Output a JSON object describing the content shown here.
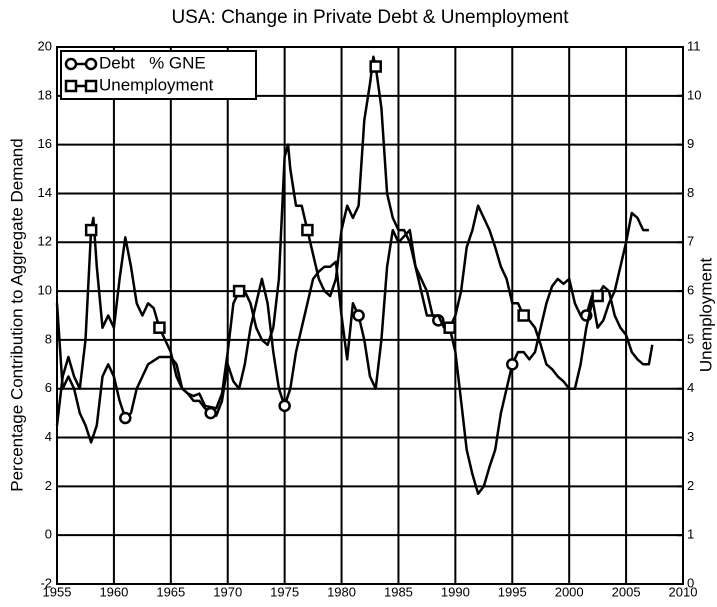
{
  "chart_data": {
    "type": "line",
    "subtitle": "USA: Change in Private Debt & Unemployment",
    "y_label": "Percentage Contribution to Aggregate Demand",
    "y2_label": "Unemployment",
    "xlim": [
      1955,
      2010
    ],
    "xticks": [
      1955,
      1960,
      1965,
      1970,
      1975,
      1980,
      1985,
      1990,
      1995,
      2000,
      2005,
      2010
    ],
    "ylim": [
      -2,
      20
    ],
    "yticks": [
      -2,
      0,
      2,
      4,
      6,
      8,
      10,
      12,
      14,
      16,
      18,
      20
    ],
    "y2lim": [
      0,
      11
    ],
    "y2ticks": [
      0,
      1,
      2,
      3,
      4,
      5,
      6,
      7,
      8,
      9,
      10,
      11
    ],
    "grid": true,
    "legend": "upper left",
    "series": [
      {
        "name": "Debt   % GNE",
        "color": "#000000",
        "marker": "circle",
        "axis": "y",
        "x": [
          1955,
          1955.5,
          1956,
          1956.5,
          1957,
          1957.5,
          1958,
          1958.5,
          1959,
          1959.5,
          1960,
          1960.5,
          1961,
          1961.5,
          1962,
          1962.5,
          1963,
          1964,
          1965,
          1965.5,
          1966,
          1966.5,
          1967,
          1967.5,
          1968,
          1968.5,
          1969,
          1969.5,
          1970,
          1970.5,
          1971,
          1971.5,
          1972,
          1972.5,
          1973,
          1973.5,
          1974,
          1974.5,
          1975,
          1975.5,
          1976,
          1976.5,
          1977,
          1977.5,
          1978,
          1978.5,
          1979,
          1979.5,
          1980,
          1980.5,
          1981,
          1981.5,
          1982,
          1982.5,
          1983,
          1983.5,
          1984,
          1984.5,
          1985,
          1986,
          1986.5,
          1987,
          1987.5,
          1988,
          1988.5,
          1989,
          1989.5,
          1990,
          1990.5,
          1991,
          1991.5,
          1992,
          1992.5,
          1993,
          1993.5,
          1994,
          1994.5,
          1995,
          1995.5,
          1996,
          1996.5,
          1997,
          1997.5,
          1998,
          1998.5,
          1999,
          1999.5,
          2000,
          2000.5,
          2001,
          2001.5,
          2002,
          2002.5,
          2003,
          2003.5,
          2004,
          2004.5,
          2005,
          2005.5,
          2006,
          2006.5,
          2007
        ],
        "values": [
          9.5,
          6.0,
          6.5,
          6.0,
          5.0,
          4.5,
          3.8,
          4.5,
          6.5,
          7.0,
          6.5,
          5.5,
          4.8,
          5.0,
          6.0,
          6.5,
          7.0,
          7.3,
          7.3,
          7.0,
          6.0,
          5.8,
          5.5,
          5.5,
          5.2,
          5.0,
          4.9,
          5.5,
          7.0,
          6.3,
          6.0,
          7.0,
          8.5,
          9.5,
          10.5,
          9.5,
          7.5,
          6.0,
          5.3,
          6.0,
          7.5,
          8.5,
          9.5,
          10.5,
          10.8,
          11.0,
          11.0,
          11.2,
          9.0,
          7.2,
          9.5,
          9.0,
          8.0,
          6.5,
          6.0,
          8.0,
          11.0,
          12.5,
          12.0,
          12.5,
          11.0,
          10.0,
          9.0,
          9.0,
          8.8,
          8.7,
          8.5,
          7.5,
          5.5,
          3.5,
          2.5,
          1.7,
          2.0,
          2.8,
          3.5,
          5.0,
          6.0,
          7.0,
          7.5,
          7.5,
          7.2,
          7.5,
          8.5,
          9.5,
          10.2,
          10.5,
          10.3,
          10.5,
          9.5,
          9.0,
          9.0,
          9.8,
          8.5,
          8.8,
          9.5,
          10.0,
          11.0,
          12.0,
          13.2,
          13.0,
          12.5,
          12.5
        ]
      },
      {
        "name": "Unemployment",
        "color": "#000000",
        "marker": "square",
        "axis": "y2",
        "x": [
          1955,
          1955.5,
          1956,
          1956.5,
          1957,
          1957.5,
          1958,
          1958.2,
          1958.5,
          1959,
          1959.5,
          1960,
          1960.5,
          1961,
          1961.5,
          1962,
          1962.5,
          1963,
          1963.5,
          1964,
          1964.5,
          1965,
          1965.5,
          1966,
          1966.5,
          1967,
          1967.5,
          1968,
          1969,
          1969.5,
          1970,
          1970.5,
          1971,
          1971.5,
          1972,
          1972.5,
          1973,
          1973.5,
          1974,
          1974.5,
          1975,
          1975.3,
          1975.5,
          1976,
          1976.5,
          1977,
          1977.5,
          1978,
          1978.5,
          1979,
          1979.5,
          1980,
          1980.5,
          1981,
          1981.5,
          1982,
          1982.5,
          1982.8,
          1983,
          1983.5,
          1984,
          1984.5,
          1985,
          1985.5,
          1986,
          1986.5,
          1987,
          1987.5,
          1988,
          1988.5,
          1989,
          1989.5,
          1990,
          1990.5,
          1991,
          1991.5,
          1992,
          1992.5,
          1993,
          1993.5,
          1994,
          1994.5,
          1995,
          1995.5,
          1996,
          1996.5,
          1997,
          1997.5,
          1998,
          1998.5,
          1999,
          1999.5,
          2000,
          2000.5,
          2001,
          2001.5,
          2002,
          2002.5,
          2003,
          2003.5,
          2004,
          2004.5,
          2005,
          2005.5,
          2006,
          2006.5,
          2007,
          2007.3
        ],
        "values": [
          3.25,
          4.25,
          4.65,
          4.25,
          4,
          5,
          7.25,
          7.5,
          6.5,
          5.25,
          5.5,
          5.25,
          6.25,
          7.1,
          6.5,
          5.75,
          5.5,
          5.75,
          5.65,
          5.25,
          5,
          4.75,
          4.25,
          4,
          3.9,
          3.85,
          3.9,
          3.65,
          3.6,
          3.9,
          4.75,
          5.75,
          6,
          6,
          5.75,
          5.25,
          5,
          4.9,
          5.25,
          6.25,
          8.75,
          9,
          8.5,
          7.75,
          7.75,
          7.25,
          6.75,
          6.25,
          6,
          5.9,
          6.25,
          7.25,
          7.75,
          7.5,
          7.75,
          9.5,
          10.25,
          10.8,
          10.6,
          9.75,
          8,
          7.5,
          7.25,
          7.25,
          7,
          6.5,
          6.25,
          6,
          5.5,
          5.5,
          5.25,
          5.25,
          5.5,
          6,
          6.9,
          7.25,
          7.75,
          7.5,
          7.25,
          6.9,
          6.5,
          6.25,
          5.75,
          5.75,
          5.5,
          5.4,
          5.25,
          4.9,
          4.5,
          4.4,
          4.25,
          4.15,
          4,
          4,
          4.5,
          5.25,
          5.75,
          5.9,
          6.1,
          6,
          5.5,
          5.25,
          5.1,
          4.75,
          4.6,
          4.5,
          4.5,
          4.9
        ]
      }
    ]
  }
}
